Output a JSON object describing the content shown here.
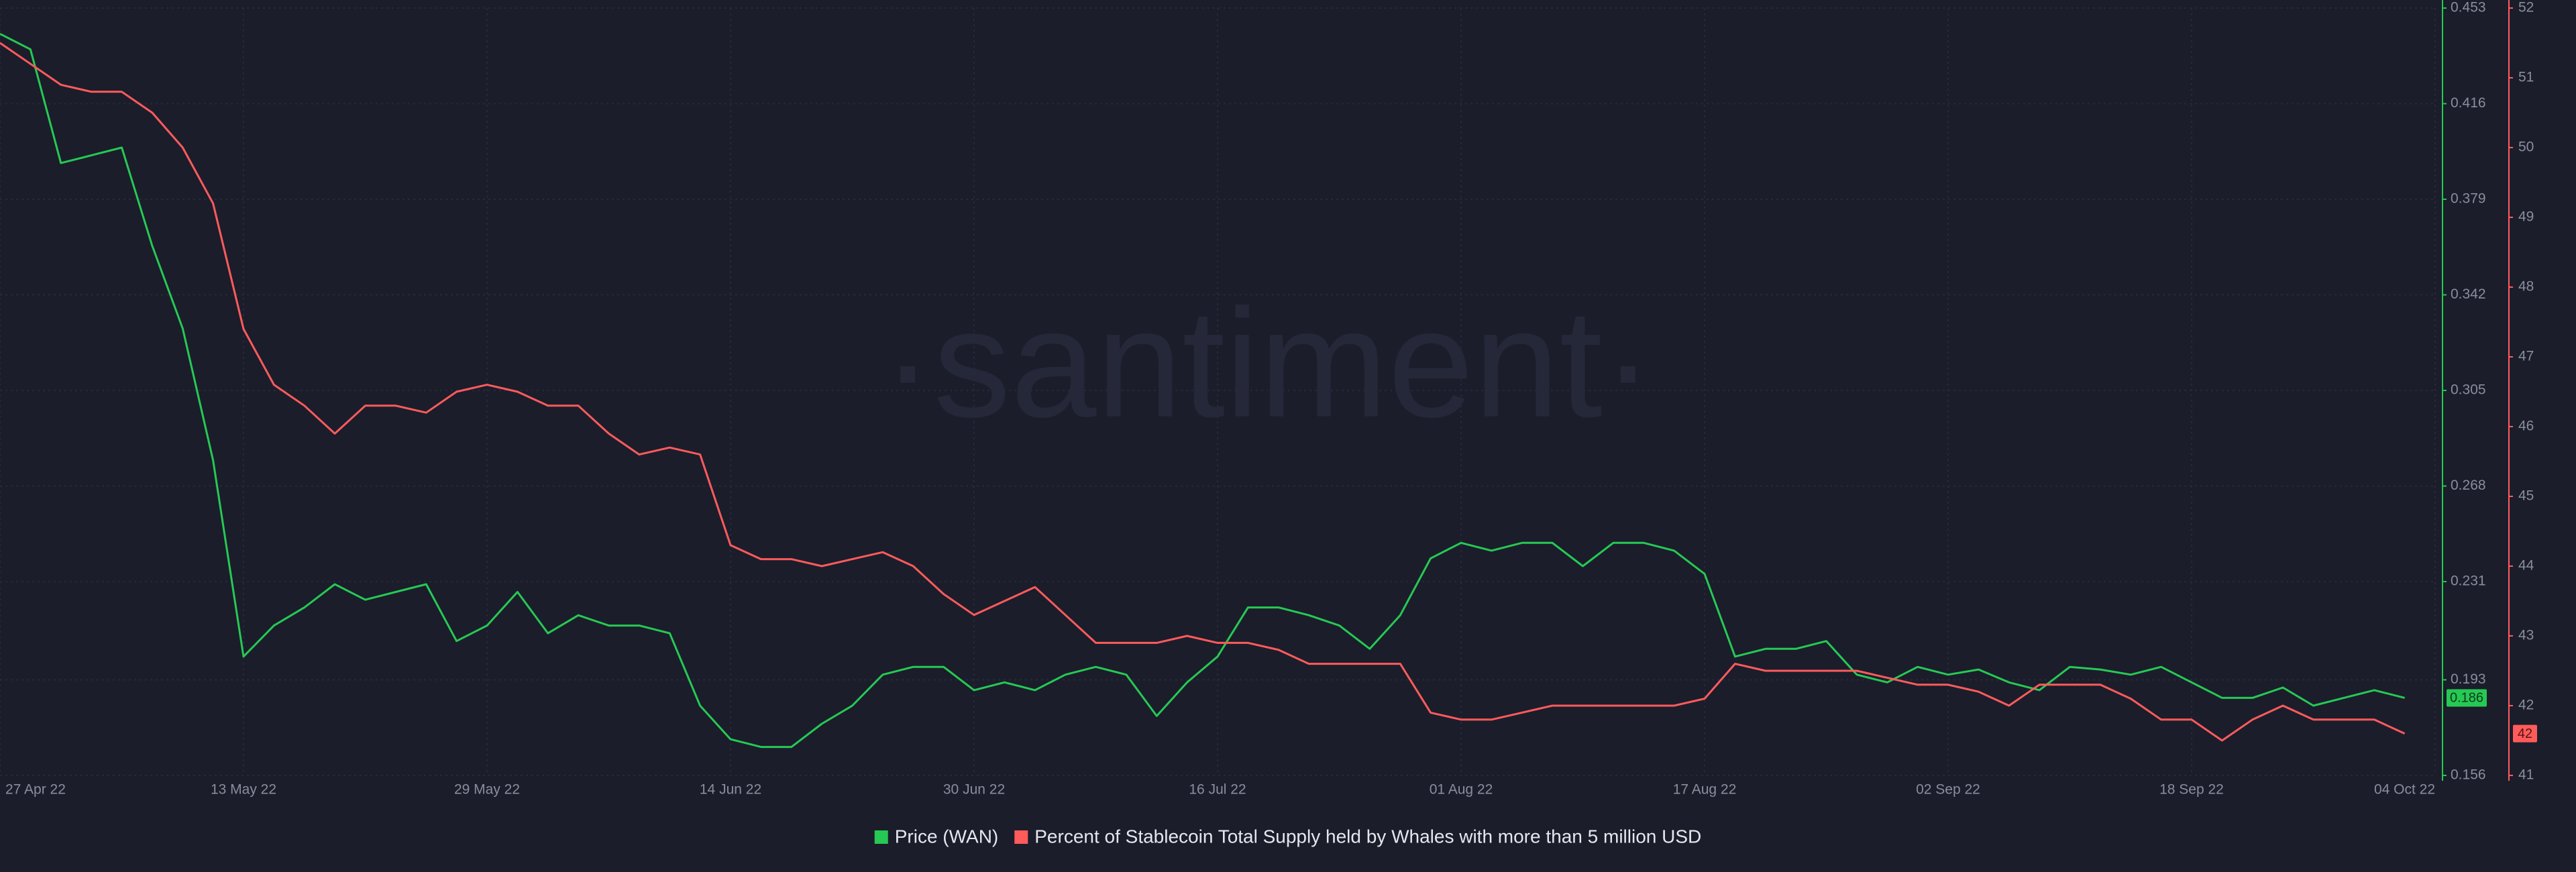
{
  "chart_data": {
    "type": "line",
    "watermark": "·santiment·",
    "x": [
      "2022-04-27",
      "2022-04-29",
      "2022-05-01",
      "2022-05-03",
      "2022-05-05",
      "2022-05-07",
      "2022-05-09",
      "2022-05-11",
      "2022-05-13",
      "2022-05-15",
      "2022-05-17",
      "2022-05-19",
      "2022-05-21",
      "2022-05-23",
      "2022-05-25",
      "2022-05-27",
      "2022-05-29",
      "2022-05-31",
      "2022-06-02",
      "2022-06-04",
      "2022-06-06",
      "2022-06-08",
      "2022-06-10",
      "2022-06-12",
      "2022-06-14",
      "2022-06-16",
      "2022-06-18",
      "2022-06-20",
      "2022-06-22",
      "2022-06-24",
      "2022-06-26",
      "2022-06-28",
      "2022-06-30",
      "2022-07-02",
      "2022-07-04",
      "2022-07-06",
      "2022-07-08",
      "2022-07-10",
      "2022-07-12",
      "2022-07-14",
      "2022-07-16",
      "2022-07-18",
      "2022-07-20",
      "2022-07-22",
      "2022-07-24",
      "2022-07-26",
      "2022-07-28",
      "2022-07-30",
      "2022-08-01",
      "2022-08-03",
      "2022-08-05",
      "2022-08-07",
      "2022-08-09",
      "2022-08-11",
      "2022-08-13",
      "2022-08-15",
      "2022-08-17",
      "2022-08-19",
      "2022-08-21",
      "2022-08-23",
      "2022-08-25",
      "2022-08-27",
      "2022-08-29",
      "2022-08-31",
      "2022-09-02",
      "2022-09-04",
      "2022-09-06",
      "2022-09-08",
      "2022-09-10",
      "2022-09-12",
      "2022-09-14",
      "2022-09-16",
      "2022-09-18",
      "2022-09-20",
      "2022-09-22",
      "2022-09-24",
      "2022-09-26",
      "2022-09-28",
      "2022-09-30",
      "2022-10-02"
    ],
    "xlim": [
      "2022-04-27",
      "2022-10-04"
    ],
    "xticks": [
      {
        "value": "2022-04-27",
        "label": "27 Apr 22"
      },
      {
        "value": "2022-05-13",
        "label": "13 May 22"
      },
      {
        "value": "2022-05-29",
        "label": "29 May 22"
      },
      {
        "value": "2022-06-14",
        "label": "14 Jun 22"
      },
      {
        "value": "2022-06-30",
        "label": "30 Jun 22"
      },
      {
        "value": "2022-07-16",
        "label": "16 Jul 22"
      },
      {
        "value": "2022-08-01",
        "label": "01 Aug 22"
      },
      {
        "value": "2022-08-17",
        "label": "17 Aug 22"
      },
      {
        "value": "2022-09-02",
        "label": "02 Sep 22"
      },
      {
        "value": "2022-09-18",
        "label": "18 Sep 22"
      },
      {
        "value": "2022-10-04",
        "label": "04 Oct 22"
      }
    ],
    "ylim": [
      0.156,
      0.453
    ],
    "yticks": [
      0.156,
      0.193,
      0.231,
      0.268,
      0.305,
      0.342,
      0.379,
      0.416,
      0.453
    ],
    "y2lim": [
      41,
      52
    ],
    "y2ticks": [
      41,
      42,
      43,
      44,
      45,
      46,
      47,
      48,
      49,
      50,
      51,
      52
    ],
    "grid": true,
    "series": [
      {
        "name": "Price (WAN)",
        "color": "#26c953",
        "axis": "y",
        "values": [
          0.443,
          0.437,
          0.393,
          0.396,
          0.399,
          0.361,
          0.329,
          0.278,
          0.202,
          0.214,
          0.221,
          0.23,
          0.224,
          0.227,
          0.23,
          0.208,
          0.214,
          0.227,
          0.211,
          0.218,
          0.214,
          0.214,
          0.211,
          0.183,
          0.17,
          0.167,
          0.167,
          0.176,
          0.183,
          0.195,
          0.198,
          0.198,
          0.189,
          0.192,
          0.189,
          0.195,
          0.198,
          0.195,
          0.179,
          0.192,
          0.202,
          0.221,
          0.221,
          0.218,
          0.214,
          0.205,
          0.218,
          0.24,
          0.246,
          0.243,
          0.246,
          0.246,
          0.237,
          0.246,
          0.246,
          0.243,
          0.234,
          0.202,
          0.205,
          0.205,
          0.208,
          0.195,
          0.192,
          0.198,
          0.195,
          0.197,
          0.192,
          0.189,
          0.198,
          0.197,
          0.195,
          0.198,
          0.192,
          0.186,
          0.186,
          0.19,
          0.183,
          0.186,
          0.189,
          0.186
        ],
        "value_labels": [
          null,
          null,
          null,
          null,
          null,
          null,
          null,
          null,
          null,
          null,
          null,
          null,
          null,
          null,
          null,
          null,
          null,
          null,
          null,
          null,
          null,
          null,
          null,
          null,
          null,
          null,
          null,
          null,
          null,
          null,
          null,
          null,
          null,
          null,
          null,
          null,
          null,
          null,
          null,
          null,
          null,
          null,
          null,
          null,
          null,
          null,
          null,
          null,
          null,
          null,
          null,
          null,
          null,
          null,
          null,
          null,
          null,
          null,
          null,
          null,
          null,
          null,
          null,
          null,
          null,
          null,
          null,
          null,
          null,
          null,
          null,
          null,
          null,
          null,
          null,
          null,
          null,
          null,
          null,
          "0.186"
        ]
      },
      {
        "name": "Percent of Stablecoin Total Supply held by Whales with more than 5 million USD",
        "color": "#ff5b5b",
        "axis": "y2",
        "values": [
          51.5,
          51.2,
          50.9,
          50.8,
          50.8,
          50.5,
          50.0,
          49.2,
          47.4,
          46.6,
          46.3,
          45.9,
          46.3,
          46.3,
          46.2,
          46.5,
          46.6,
          46.5,
          46.3,
          46.3,
          45.9,
          45.6,
          45.7,
          45.6,
          44.3,
          44.1,
          44.1,
          44.0,
          44.1,
          44.2,
          44.0,
          43.6,
          43.3,
          43.5,
          43.7,
          43.3,
          42.9,
          42.9,
          42.9,
          43.0,
          42.9,
          42.9,
          42.8,
          42.6,
          42.6,
          42.6,
          42.6,
          41.9,
          41.8,
          41.8,
          41.9,
          42.0,
          42.0,
          42.0,
          42.0,
          42.0,
          42.1,
          42.6,
          42.5,
          42.5,
          42.5,
          42.5,
          42.4,
          42.3,
          42.3,
          42.2,
          42.0,
          42.3,
          42.3,
          42.3,
          42.1,
          41.8,
          41.8,
          41.5,
          41.8,
          42.0,
          41.8,
          41.8,
          41.8,
          41.6
        ],
        "value_labels": [
          null,
          null,
          null,
          null,
          null,
          null,
          null,
          null,
          null,
          null,
          null,
          null,
          null,
          null,
          null,
          null,
          null,
          null,
          null,
          null,
          null,
          null,
          null,
          null,
          null,
          null,
          null,
          null,
          null,
          null,
          null,
          null,
          null,
          null,
          null,
          null,
          null,
          null,
          null,
          null,
          null,
          null,
          null,
          null,
          null,
          null,
          null,
          null,
          null,
          null,
          null,
          null,
          null,
          null,
          null,
          null,
          null,
          null,
          null,
          null,
          null,
          null,
          null,
          null,
          null,
          null,
          null,
          null,
          null,
          null,
          null,
          null,
          null,
          null,
          null,
          null,
          null,
          null,
          null,
          "42"
        ]
      }
    ]
  }
}
